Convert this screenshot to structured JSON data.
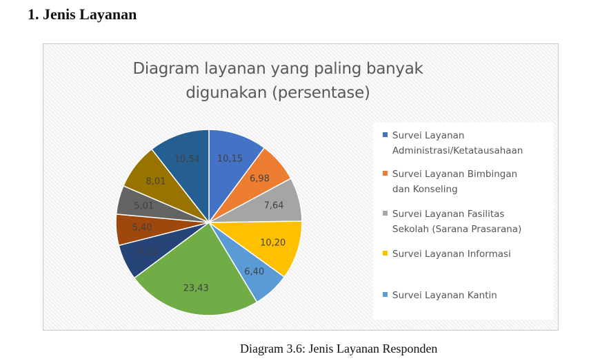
{
  "heading": "1.   Jenis Layanan",
  "caption": "Diagram 3.6: Jenis Layanan Responden",
  "chart_data": {
    "type": "pie",
    "title_line1": "Diagram layanan yang paling banyak",
    "title_line2": "digunakan (persentase)",
    "legend_position": "right",
    "slices": [
      {
        "label": "Survei Layanan Administrasi/Ketatausahaan",
        "value": 10.15,
        "display": "10,15",
        "color": "#4472c4"
      },
      {
        "label": "Survei Layanan Bimbingan dan Konseling",
        "value": 6.98,
        "display": "6,98",
        "color": "#ed7d31"
      },
      {
        "label": "Survei Layanan Fasilitas Sekolah (Sarana Prasarana)",
        "value": 7.64,
        "display": "7,64",
        "color": "#a5a5a5"
      },
      {
        "label": "Survei Layanan Informasi",
        "value": 10.2,
        "display": "10,20",
        "color": "#ffc000"
      },
      {
        "label": "Survei Layanan Kantin",
        "value": 6.4,
        "display": "6,40",
        "color": "#5b9bd5"
      },
      {
        "label": "",
        "value": 23.43,
        "display": "23,43",
        "color": "#70ad47"
      },
      {
        "label": "",
        "value": 6.22,
        "display": "6,22",
        "color": "#264478"
      },
      {
        "label": "",
        "value": 5.4,
        "display": "5,40",
        "color": "#9e480e"
      },
      {
        "label": "",
        "value": 5.01,
        "display": "5,01",
        "color": "#636363"
      },
      {
        "label": "",
        "value": 8.01,
        "display": "8,01",
        "color": "#997300"
      },
      {
        "label": "",
        "value": 10.54,
        "display": "10,54",
        "color": "#255e91"
      }
    ],
    "legend": [
      {
        "line1": "Survei Layanan",
        "line2": "Administrasi/Ketatausahaan",
        "color": "#4472c4"
      },
      {
        "line1": "Survei Layanan Bimbingan",
        "line2": "dan Konseling",
        "color": "#ed7d31"
      },
      {
        "line1": "Survei Layanan Fasilitas",
        "line2": "Sekolah (Sarana Prasarana)",
        "color": "#a5a5a5"
      },
      {
        "line1": "Survei Layanan Informasi",
        "line2": "",
        "color": "#ffc000"
      },
      {
        "line1": "Survei Layanan Kantin",
        "line2": "",
        "color": "#5b9bd5"
      }
    ]
  }
}
